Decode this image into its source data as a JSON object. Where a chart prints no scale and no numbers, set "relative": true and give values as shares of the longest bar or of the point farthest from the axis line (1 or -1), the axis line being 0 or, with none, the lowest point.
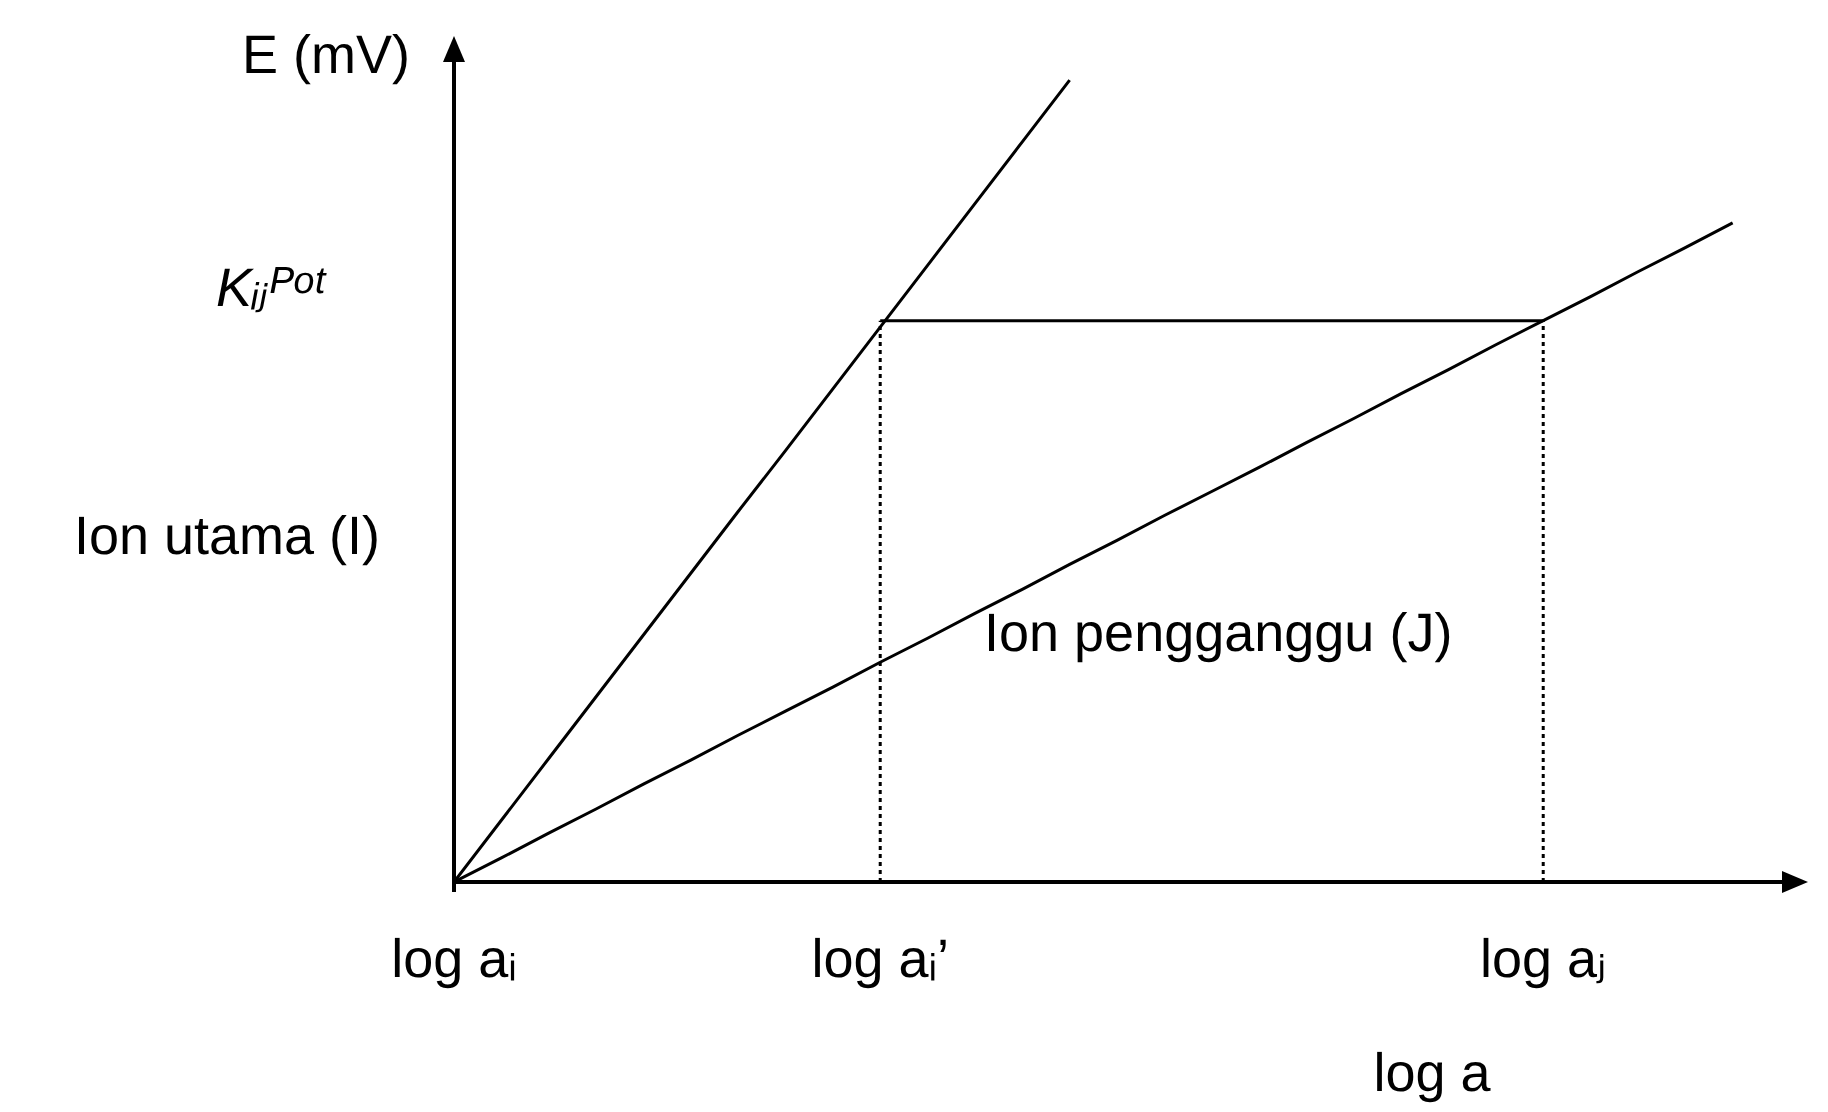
{
  "chart_data": {
    "type": "line",
    "relative": true,
    "xlabel": "log a",
    "ylabel": "E (mV)",
    "marker": "none",
    "categories": [
      "log aᵢ",
      null,
      null,
      null,
      null,
      null,
      null,
      null,
      null,
      "log aᵢ’",
      null,
      null,
      null,
      null,
      null,
      null,
      null,
      null,
      null,
      null,
      null,
      null,
      null,
      "log aⱼ",
      null,
      null,
      null,
      null,
      null
    ],
    "series": [
      {
        "color": "#000000",
        "values": [
          0,
          0.077,
          0.154,
          0.231,
          0.308,
          0.385,
          0.462,
          0.538,
          0.615,
          0.692,
          0.769,
          0.846,
          0.923,
          1,
          null,
          null,
          null,
          null,
          null,
          null,
          null,
          null,
          null,
          null,
          null,
          null,
          null,
          null,
          null
        ]
      },
      {
        "name": "Ion pengganggu (J)",
        "color": "#000000",
        "values": [
          0,
          0.03,
          0.061,
          0.091,
          0.122,
          0.152,
          0.183,
          0.213,
          0.243,
          0.274,
          0.304,
          0.335,
          0.365,
          0.396,
          0.426,
          0.457,
          0.487,
          0.517,
          0.548,
          0.578,
          0.609,
          0.639,
          0.67,
          0.7,
          0.73,
          0.761,
          0.791,
          0.822,
          null
        ]
      },
      {
        "color": "#000000",
        "values": [
          null,
          null,
          null,
          null,
          null,
          null,
          null,
          null,
          null,
          0.7,
          0.7,
          0.7,
          0.7,
          0.7,
          0.7,
          0.7,
          0.7,
          0.7,
          0.7,
          0.7,
          0.7,
          0.7,
          0.7,
          0.7,
          null,
          null,
          null,
          null,
          null
        ]
      },
      {
        "color": "#000000",
        "x": [
          "log aᵢ’",
          "log aᵢ’"
        ],
        "values": [
          0,
          0.7
        ],
        "line_style": "dotted"
      },
      {
        "color": "#000000",
        "x": [
          "log aⱼ",
          "log aⱼ"
        ],
        "values": [
          0,
          0.7
        ],
        "line_style": "dotted"
      }
    ],
    "annotations": [
      "Kᵢⱼᴾᵒᵗ",
      "Ion utama (I)"
    ]
  }
}
